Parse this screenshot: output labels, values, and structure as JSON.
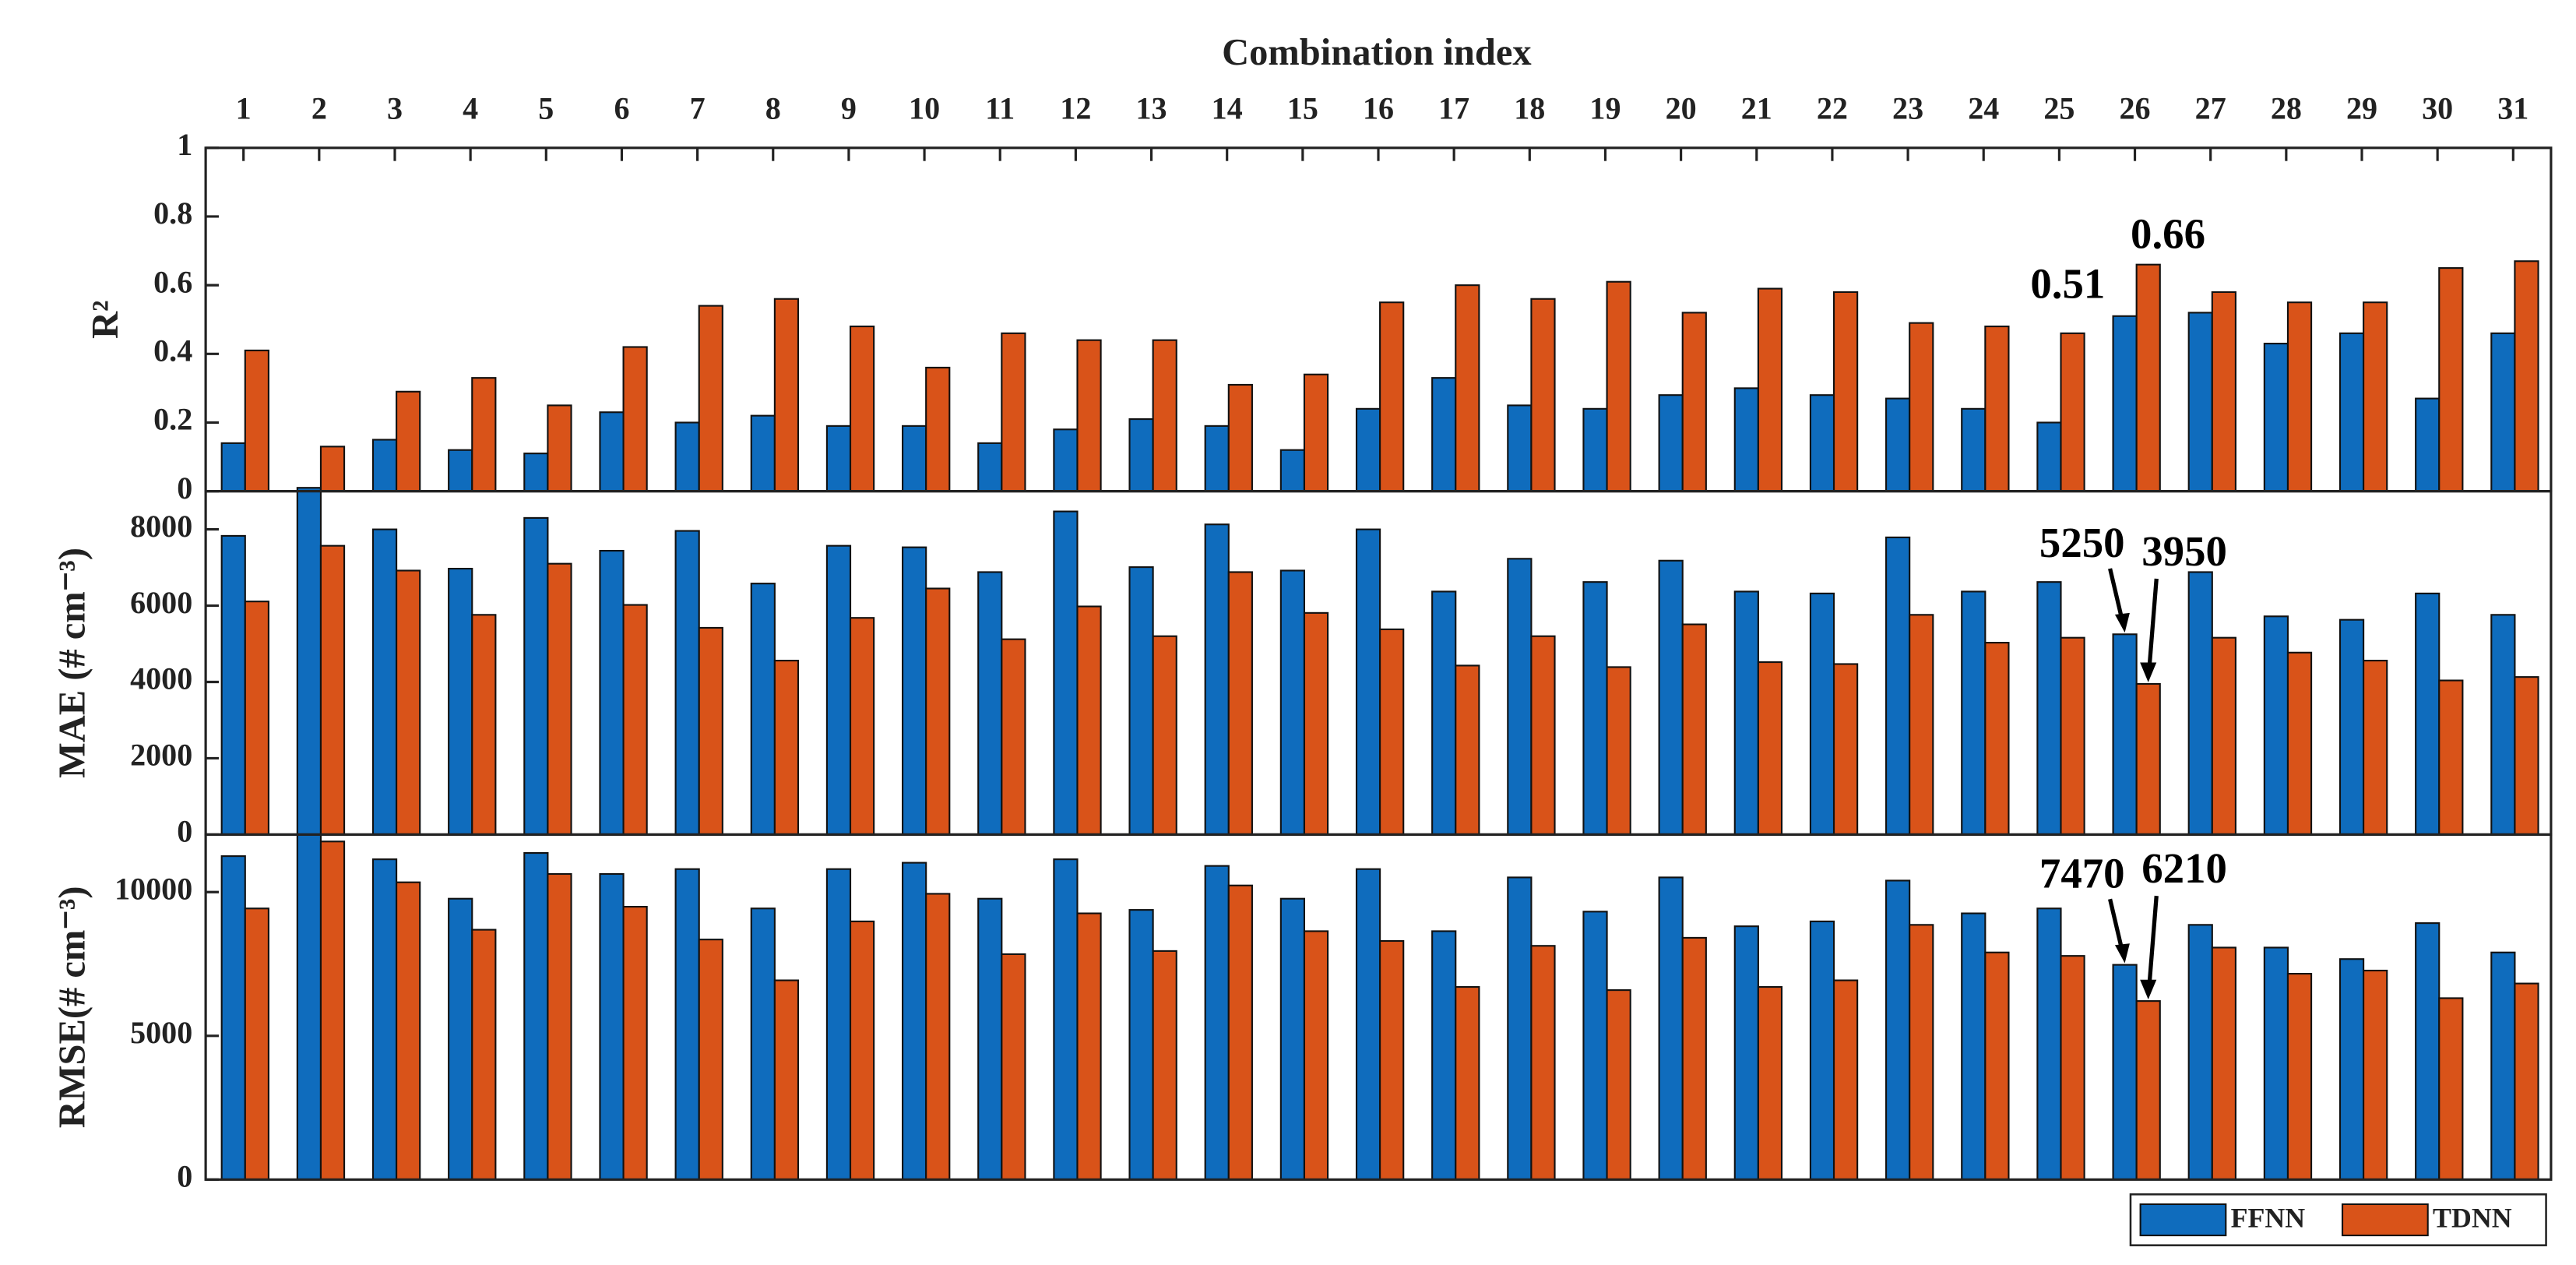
{
  "chart_data": [
    {
      "type": "bar",
      "title": "Combination index",
      "categories": [
        "1",
        "2",
        "3",
        "4",
        "5",
        "6",
        "7",
        "8",
        "9",
        "10",
        "11",
        "12",
        "13",
        "14",
        "15",
        "16",
        "17",
        "18",
        "19",
        "20",
        "21",
        "22",
        "23",
        "24",
        "25",
        "26",
        "27",
        "28",
        "29",
        "30",
        "31"
      ],
      "ylabel": "R²",
      "ylim": [
        0,
        1
      ],
      "yticks": [
        0,
        0.2,
        0.4,
        0.6,
        0.8,
        1
      ],
      "series": [
        {
          "name": "FFNN",
          "color": "#0f6cbd",
          "values": [
            0.14,
            0.01,
            0.15,
            0.12,
            0.11,
            0.23,
            0.2,
            0.22,
            0.19,
            0.19,
            0.14,
            0.18,
            0.21,
            0.19,
            0.12,
            0.24,
            0.33,
            0.25,
            0.24,
            0.28,
            0.3,
            0.28,
            0.27,
            0.24,
            0.2,
            0.51,
            0.52,
            0.43,
            0.46,
            0.27,
            0.46
          ],
          "value_labels": [
            null,
            null,
            null,
            null,
            null,
            null,
            null,
            null,
            null,
            null,
            null,
            null,
            null,
            null,
            null,
            null,
            null,
            null,
            null,
            null,
            null,
            null,
            null,
            null,
            null,
            "0.51",
            null,
            null,
            null,
            null,
            null
          ]
        },
        {
          "name": "TDNN",
          "color": "#d95319",
          "values": [
            0.41,
            0.13,
            0.29,
            0.33,
            0.25,
            0.42,
            0.54,
            0.56,
            0.48,
            0.36,
            0.46,
            0.44,
            0.44,
            0.31,
            0.34,
            0.55,
            0.6,
            0.56,
            0.61,
            0.52,
            0.59,
            0.58,
            0.49,
            0.48,
            0.46,
            0.66,
            0.58,
            0.55,
            0.55,
            0.65,
            0.67
          ],
          "value_labels": [
            null,
            null,
            null,
            null,
            null,
            null,
            null,
            null,
            null,
            null,
            null,
            null,
            null,
            null,
            null,
            null,
            null,
            null,
            null,
            null,
            null,
            null,
            null,
            null,
            null,
            "0.66",
            null,
            null,
            null,
            null,
            null
          ]
        }
      ]
    },
    {
      "type": "bar",
      "ylabel": "MAE (# cm⁻³)",
      "ylim": [
        0,
        9000
      ],
      "yticks": [
        0,
        2000,
        4000,
        6000,
        8000
      ],
      "series": [
        {
          "color": "#0f6cbd",
          "values": [
            7830,
            9000,
            8000,
            6970,
            8300,
            7440,
            7960,
            6580,
            7570,
            7530,
            6880,
            8470,
            7010,
            8130,
            6920,
            8000,
            6370,
            7230,
            6620,
            7180,
            6370,
            6320,
            7790,
            6370,
            6620,
            5250,
            6880,
            5720,
            5630,
            6320,
            5760
          ],
          "value_labels": [
            null,
            null,
            null,
            null,
            null,
            null,
            null,
            null,
            null,
            null,
            null,
            null,
            null,
            null,
            null,
            null,
            null,
            null,
            null,
            null,
            null,
            null,
            null,
            null,
            null,
            "5250",
            null,
            null,
            null,
            null,
            null
          ]
        },
        {
          "color": "#d95319",
          "values": [
            6110,
            7570,
            6920,
            5760,
            7100,
            6020,
            5420,
            4560,
            5680,
            6450,
            5120,
            5980,
            5200,
            6880,
            5810,
            5380,
            4430,
            5200,
            4390,
            5510,
            4520,
            4470,
            5760,
            5030,
            5160,
            3950,
            5160,
            4770,
            4560,
            4040,
            4130
          ],
          "value_labels": [
            null,
            null,
            null,
            null,
            null,
            null,
            null,
            null,
            null,
            null,
            null,
            null,
            null,
            null,
            null,
            null,
            null,
            null,
            null,
            null,
            null,
            null,
            null,
            null,
            null,
            "3950",
            null,
            null,
            null,
            null,
            null
          ]
        }
      ]
    },
    {
      "type": "bar",
      "ylabel": "RMSE(# cm⁻³)",
      "ylim": [
        0,
        12000
      ],
      "yticks": [
        0,
        5000,
        10000
      ],
      "series": [
        {
          "color": "#0f6cbd",
          "values": [
            11250,
            12000,
            11140,
            9770,
            11360,
            10630,
            10800,
            9430,
            10800,
            11020,
            9770,
            11140,
            9380,
            10910,
            9770,
            10800,
            8640,
            10510,
            9320,
            10510,
            8810,
            8980,
            10400,
            9260,
            9430,
            7470,
            8860,
            8070,
            7670,
            8920,
            7900
          ],
          "value_labels": [
            null,
            null,
            null,
            null,
            null,
            null,
            null,
            null,
            null,
            null,
            null,
            null,
            null,
            null,
            null,
            null,
            null,
            null,
            null,
            null,
            null,
            null,
            null,
            null,
            null,
            "7470",
            null,
            null,
            null,
            null,
            null
          ]
        },
        {
          "color": "#d95319",
          "values": [
            9430,
            11760,
            10340,
            8690,
            10630,
            9490,
            8350,
            6930,
            8980,
            9940,
            7840,
            9260,
            7950,
            10230,
            8640,
            8300,
            6700,
            8130,
            6590,
            8410,
            6700,
            6930,
            8860,
            7900,
            7780,
            6210,
            8070,
            7160,
            7270,
            6310,
            6820
          ],
          "value_labels": [
            null,
            null,
            null,
            null,
            null,
            null,
            null,
            null,
            null,
            null,
            null,
            null,
            null,
            null,
            null,
            null,
            null,
            null,
            null,
            null,
            null,
            null,
            null,
            null,
            null,
            "6210",
            null,
            null,
            null,
            null,
            null
          ]
        }
      ]
    }
  ]
}
